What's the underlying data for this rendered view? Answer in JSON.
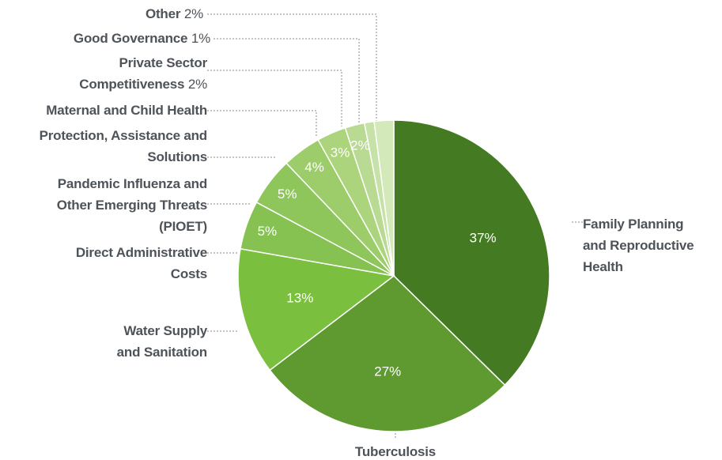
{
  "chart_data": {
    "type": "pie",
    "categories": [
      "Family Planning and Reproductive Health",
      "Tuberculosis",
      "Water Supply and Sanitation",
      "Direct Administrative Costs",
      "Pandemic Influenza and Other Emerging Threats (PIOET)",
      "Protection, Assistance and Solutions",
      "Maternal and Child Health",
      "Private Sector Competitiveness",
      "Good Governance",
      "Other"
    ],
    "values": [
      37,
      27,
      13,
      5,
      5,
      4,
      3,
      2,
      1,
      2
    ],
    "value_labels": [
      "37%",
      "27%",
      "13%",
      "5%",
      "5%",
      "4%",
      "3%",
      "2%",
      null,
      null
    ],
    "legend_value_labels": [
      null,
      null,
      null,
      null,
      null,
      null,
      null,
      "2%",
      "1%",
      "2%"
    ],
    "colors": [
      "#437a22",
      "#5e9a2f",
      "#7bbf3f",
      "#86c251",
      "#8fc65c",
      "#9ccd6a",
      "#abd47d",
      "#b9da92",
      "#c7e2a8",
      "#d3e9b9"
    ]
  }
}
